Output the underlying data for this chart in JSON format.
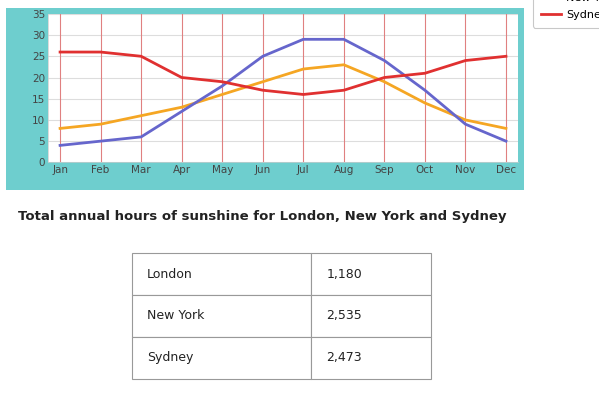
{
  "months": [
    "Jan",
    "Feb",
    "Mar",
    "Apr",
    "May",
    "Jun",
    "Jul",
    "Aug",
    "Sep",
    "Oct",
    "Nov",
    "Dec"
  ],
  "london": [
    8,
    9,
    11,
    13,
    16,
    19,
    22,
    23,
    19,
    14,
    10,
    8
  ],
  "new_york": [
    4,
    5,
    6,
    12,
    18,
    25,
    29,
    29,
    24,
    17,
    9,
    5
  ],
  "sydney": [
    26,
    26,
    25,
    20,
    19,
    17,
    16,
    17,
    20,
    21,
    24,
    25
  ],
  "london_color": "#f5a623",
  "new_york_color": "#6666cc",
  "sydney_color": "#e03030",
  "teal_bg": "#6ecece",
  "plot_inner_bg": "#ffffff",
  "grid_h_color": "#dddddd",
  "grid_v_color": "#e08080",
  "ylim": [
    0,
    35
  ],
  "yticks": [
    0,
    5,
    10,
    15,
    20,
    25,
    30,
    35
  ],
  "linewidth": 2.0,
  "table_title": "Total annual hours of sunshine for London, New York and Sydney",
  "table_data": [
    [
      "London",
      "1,180"
    ],
    [
      "New York",
      "2,535"
    ],
    [
      "Sydney",
      "2,473"
    ]
  ]
}
